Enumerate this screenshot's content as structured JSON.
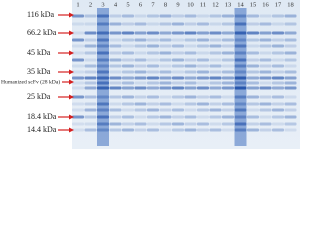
{
  "lanes": [
    "1",
    "2",
    "3",
    "4",
    "5",
    "6",
    "7",
    "8",
    "9",
    "10",
    "11",
    "12",
    "13",
    "14",
    "15",
    "16",
    "17",
    "18"
  ],
  "markers": [
    "116 kDa",
    "66.2 kDa",
    "45 kDa",
    "35 kDa",
    "Humanized scFv (28 kDa)",
    "25 kDa",
    "18.4 kDa",
    "14.4 kDa"
  ]
}
